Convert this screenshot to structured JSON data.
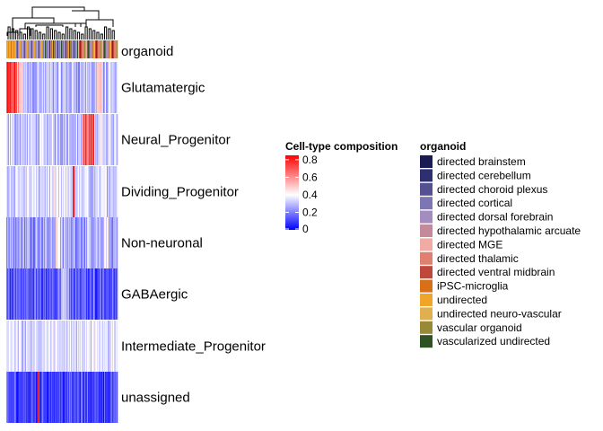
{
  "chart_data": {
    "type": "heatmap",
    "annotation_track": {
      "name": "organoid"
    },
    "rows": [
      {
        "label": "Glutamatergic"
      },
      {
        "label": "Neural_Progenitor"
      },
      {
        "label": "Dividing_Progenitor"
      },
      {
        "label": "Non-neuronal"
      },
      {
        "label": "GABAergic"
      },
      {
        "label": "Intermediate_Progenitor"
      },
      {
        "label": "unassigned"
      }
    ],
    "color_scale": {
      "title": "Cell-type composition",
      "ticks": [
        "0.8",
        "0.6",
        "0.4",
        "0.2",
        "0"
      ],
      "tick_values": [
        0.8,
        0.6,
        0.4,
        0.2,
        0
      ],
      "range": [
        0,
        0.85
      ],
      "colors": [
        "#0000ff",
        "#ffffff",
        "#ff0000"
      ]
    },
    "organoid_legend": {
      "title": "organoid",
      "items": [
        {
          "label": "directed brainstem",
          "color": "#1b1b54"
        },
        {
          "label": "directed cerebellum",
          "color": "#2e2f71"
        },
        {
          "label": "directed choroid plexus",
          "color": "#55508f"
        },
        {
          "label": "directed cortical",
          "color": "#7d76b3"
        },
        {
          "label": "directed dorsal forebrain",
          "color": "#a38cbf"
        },
        {
          "label": "directed hypothalamic arcuate",
          "color": "#c48a9a"
        },
        {
          "label": "directed MGE",
          "color": "#f0aca4"
        },
        {
          "label": "directed thalamic",
          "color": "#e08070"
        },
        {
          "label": "directed ventral midbrain",
          "color": "#c0483a"
        },
        {
          "label": "iPSC-microglia",
          "color": "#d87018"
        },
        {
          "label": "undirected",
          "color": "#f0a428"
        },
        {
          "label": "undirected neuro-vascular",
          "color": "#e0b050"
        },
        {
          "label": "vascular organoid",
          "color": "#988838"
        },
        {
          "label": "vascularized undirected",
          "color": "#2e5224"
        }
      ]
    }
  }
}
